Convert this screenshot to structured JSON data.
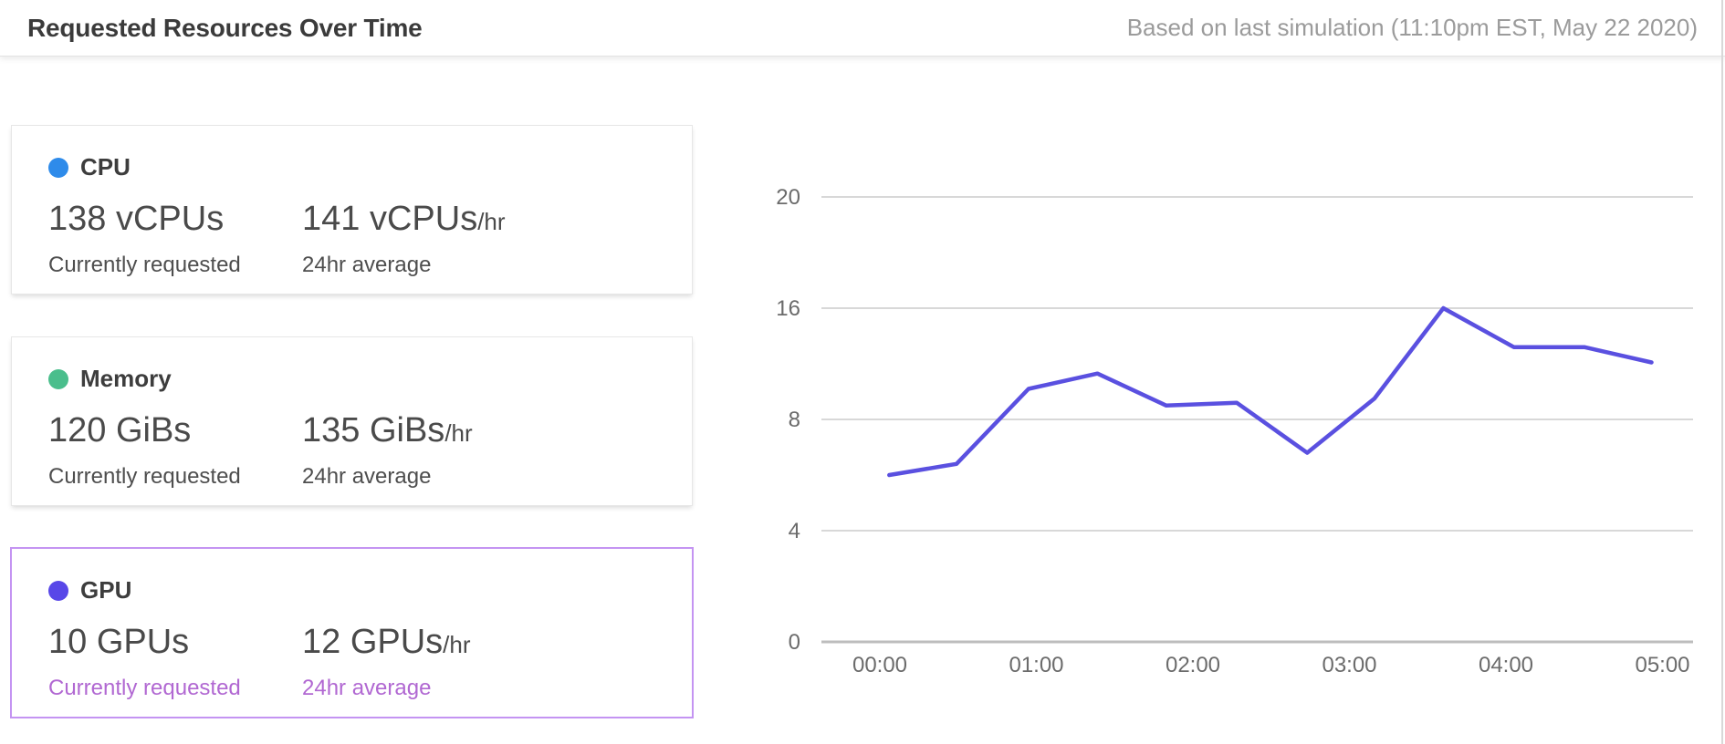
{
  "header": {
    "title": "Requested Resources Over Time",
    "subtitle": "Based on last simulation (11:10pm EST, May 22 2020)"
  },
  "cards": [
    {
      "label": "CPU",
      "dot_color": "#2e8bea",
      "current_value": "138 vCPUs",
      "current_label": "Currently requested",
      "average_value": "141 vCPUs",
      "average_suffix": "/hr",
      "average_label": "24hr average",
      "selected": false
    },
    {
      "label": "Memory",
      "dot_color": "#4abe8c",
      "current_value": "120 GiBs",
      "current_label": "Currently requested",
      "average_value": "135 GiBs",
      "average_suffix": "/hr",
      "average_label": "24hr average",
      "selected": false
    },
    {
      "label": "GPU",
      "dot_color": "#5847e8",
      "current_value": "10 GPUs",
      "current_label": "Currently requested",
      "average_value": "12 GPUs",
      "average_suffix": "/hr",
      "average_label": "24hr average",
      "selected": true,
      "selected_border_color": "#c494f2",
      "selected_accent_color": "#b168d2"
    }
  ],
  "chart_data": {
    "type": "line",
    "title": "Requested Resources Over Time",
    "xlabel": "",
    "ylabel": "",
    "grid": true,
    "legend_position": "none",
    "x_ticks": [
      "00:00",
      "01:00",
      "02:00",
      "03:00",
      "04:00",
      "05:00"
    ],
    "y_ticks": [
      20,
      16,
      8,
      4,
      0
    ],
    "gridline_color": "#cbcbcb",
    "baseline_color": "#bdbdbd",
    "tick_color": "#6b6b6b",
    "series": [
      {
        "name": "GPU",
        "color": "#5a50e0",
        "x_hours": [
          0.06,
          0.49,
          0.95,
          1.39,
          1.83,
          2.28,
          2.73,
          3.16,
          3.6,
          4.05,
          4.5,
          4.93
        ],
        "values": [
          6,
          6.4,
          10.2,
          11.3,
          9,
          9.2,
          6.8,
          9.5,
          16,
          13.2,
          13.2,
          12.1
        ]
      }
    ]
  }
}
